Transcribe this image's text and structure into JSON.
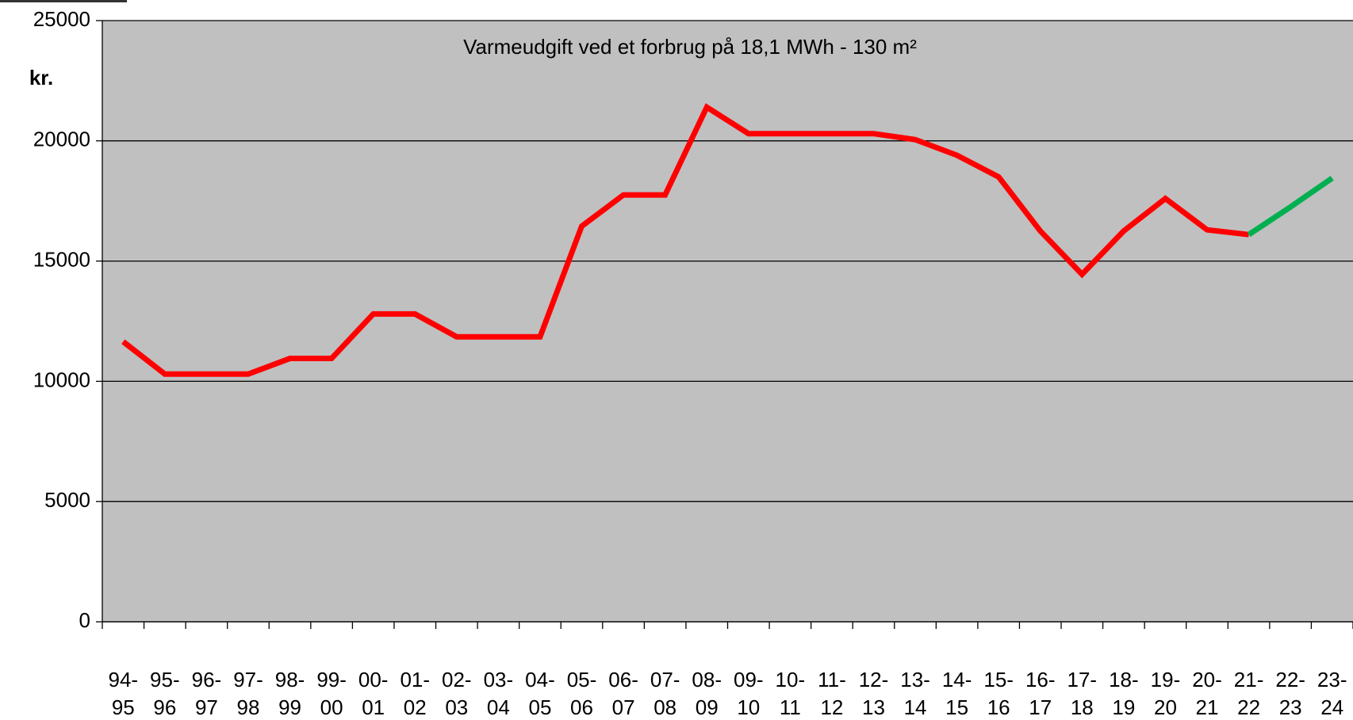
{
  "chart_data": {
    "type": "line",
    "title": "Varmeudgift  ved et forbrug på 18,1 MWh - 130 m²",
    "y_label": "kr.",
    "categories": [
      "94-95",
      "95-96",
      "96-97",
      "97-98",
      "98-99",
      "99-00",
      "00-01",
      "01-02",
      "02-03",
      "03-04",
      "04-05",
      "05-06",
      "06-07",
      "07-08",
      "08-09",
      "09-10",
      "10-11",
      "11-12",
      "12-13",
      "13-14",
      "14-15",
      "15-16",
      "16-17",
      "17-18",
      "18-19",
      "19-20",
      "20-21",
      "21-22",
      "22-23",
      "23-24"
    ],
    "series": [
      {
        "color": "#ff0000",
        "values": [
          11650,
          10300,
          10300,
          10300,
          10950,
          10950,
          12800,
          12800,
          11850,
          11850,
          11850,
          16450,
          17750,
          17750,
          21400,
          20300,
          20300,
          20300,
          20300,
          20050,
          19400,
          18500,
          16250,
          14450,
          16250,
          17600,
          16300,
          16100,
          null,
          null
        ]
      },
      {
        "color": "#00b050",
        "values": [
          null,
          null,
          null,
          null,
          null,
          null,
          null,
          null,
          null,
          null,
          null,
          null,
          null,
          null,
          null,
          null,
          null,
          null,
          null,
          null,
          null,
          null,
          null,
          null,
          null,
          null,
          null,
          16100,
          17250,
          18450
        ]
      }
    ],
    "ylim": [
      0,
      25000
    ],
    "yticks": [
      0,
      5000,
      10000,
      15000,
      20000,
      25000
    ],
    "grid": true
  }
}
